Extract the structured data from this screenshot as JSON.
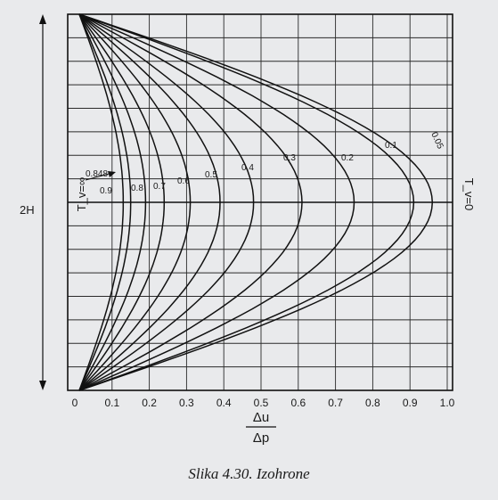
{
  "caption": "Slika 4.30. Izohrone",
  "chart_data": {
    "type": "line",
    "title": "",
    "xlabel_numerator": "Δu",
    "xlabel_denominator": "Δp",
    "x_ticks": [
      "0",
      "0.1",
      "0.2",
      "0.3",
      "0.4",
      "0.5",
      "0.6",
      "0.7",
      "0.8",
      "0.9",
      "1.0"
    ],
    "xlim": [
      0,
      1.0
    ],
    "depth_label": "2H",
    "left_boundary_label": "T_v=∞",
    "right_boundary_label": "T_v=0",
    "grid": true,
    "isochrones": [
      {
        "label": "0.05",
        "peak_value": 0.96
      },
      {
        "label": "0.1",
        "peak_value": 0.91
      },
      {
        "label": "0.2",
        "peak_value": 0.75
      },
      {
        "label": "0.3",
        "peak_value": 0.61
      },
      {
        "label": "0.4",
        "peak_value": 0.48
      },
      {
        "label": "0.5",
        "peak_value": 0.39
      },
      {
        "label": "0.6",
        "peak_value": 0.31
      },
      {
        "label": "0.7",
        "peak_value": 0.24
      },
      {
        "label": "0.8",
        "peak_value": 0.19
      },
      {
        "label": "0.9",
        "peak_value": 0.15
      },
      {
        "label": "0.848",
        "peak_value": 0.13
      }
    ]
  },
  "colors": {
    "ink": "#111111",
    "paper": "#e9eaec"
  }
}
